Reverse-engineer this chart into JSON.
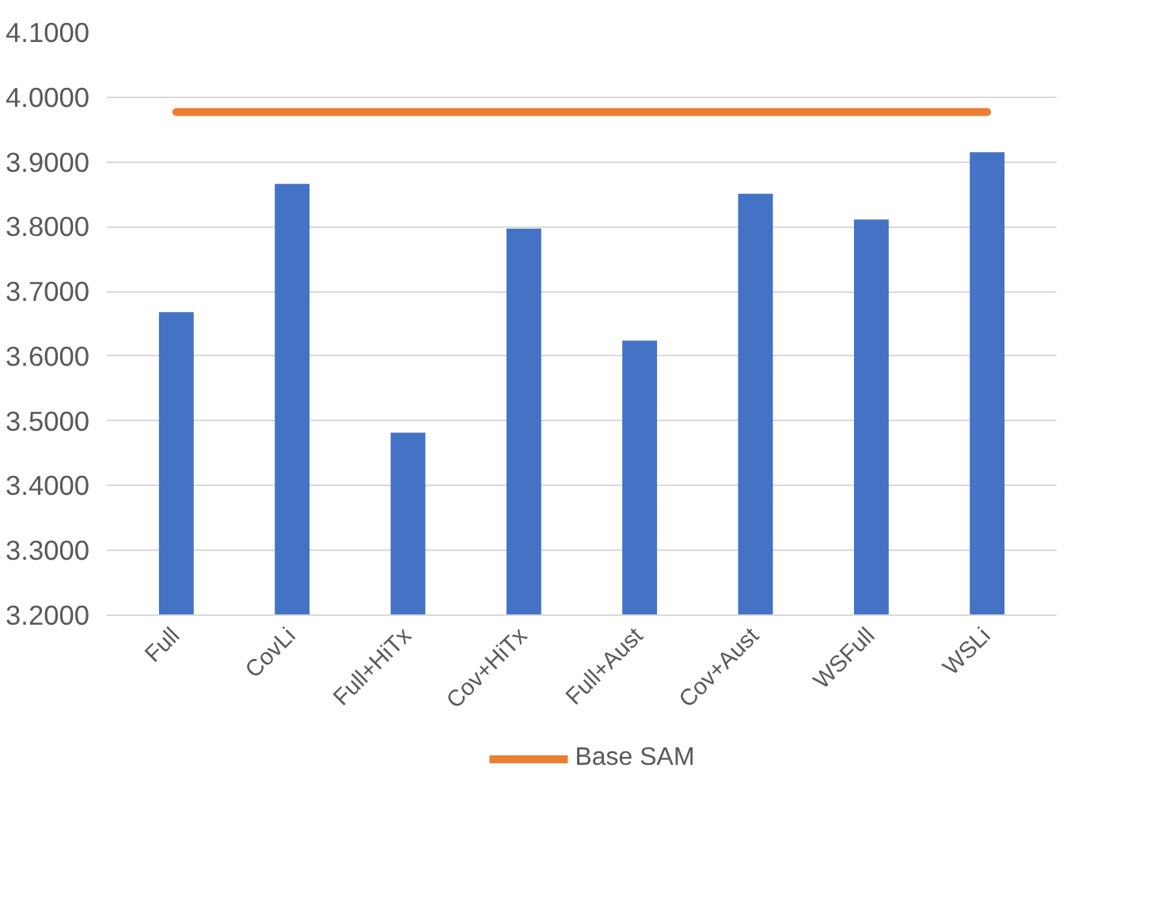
{
  "chart_data": {
    "type": "bar",
    "categories": [
      "Full",
      "CovLi",
      "Full+HiTx",
      "Cov+HiTx",
      "Full+Aust",
      "Cov+Aust",
      "WSFull",
      "WSLi"
    ],
    "series": [
      {
        "type": "bar",
        "color": "#4472c4",
        "values": [
          3.668,
          3.866,
          3.482,
          3.797,
          3.624,
          3.851,
          3.811,
          3.915
        ]
      },
      {
        "type": "line",
        "name": "Base SAM",
        "color": "#ed7d31",
        "values": [
          3.977,
          3.977,
          3.977,
          3.977,
          3.977,
          3.977,
          3.977,
          3.977
        ]
      }
    ],
    "ylim": [
      3.2,
      4.1
    ],
    "yticks": [
      {
        "value": 3.2,
        "label": "3.2000"
      },
      {
        "value": 3.3,
        "label": "3.3000"
      },
      {
        "value": 3.4,
        "label": "3.4000"
      },
      {
        "value": 3.5,
        "label": "3.5000"
      },
      {
        "value": 3.6,
        "label": "3.6000"
      },
      {
        "value": 3.7,
        "label": "3.7000"
      },
      {
        "value": 3.8,
        "label": "3.8000"
      },
      {
        "value": 3.9,
        "label": "3.9000"
      },
      {
        "value": 4.0,
        "label": "4.0000"
      },
      {
        "value": 4.1,
        "label": "4.1000"
      }
    ],
    "grid": "y",
    "legend": "bottom"
  }
}
